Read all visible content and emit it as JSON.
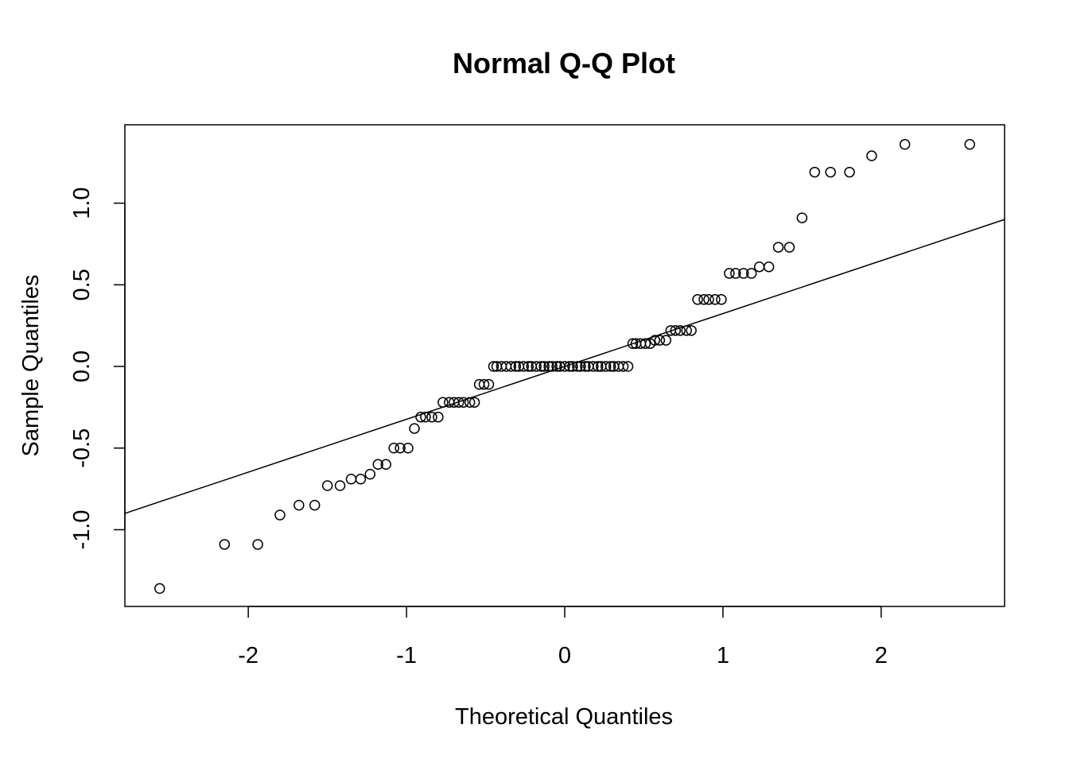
{
  "chart_data": {
    "type": "scatter",
    "title": "Normal Q-Q Plot",
    "xlabel": "Theoretical Quantiles",
    "ylabel": "Sample Quantiles",
    "xlim": [
      -2.78,
      2.78
    ],
    "ylim": [
      -1.47,
      1.48
    ],
    "x_ticks": [
      -2,
      -1,
      0,
      1,
      2
    ],
    "x_tick_labels": [
      "-2",
      "-1",
      "0",
      "1",
      "2"
    ],
    "y_ticks": [
      -1.0,
      -0.5,
      0.0,
      0.5,
      1.0
    ],
    "y_tick_labels": [
      "-1.0",
      "-0.5",
      "0.0",
      "0.5",
      "1.0"
    ],
    "grid": false,
    "legend": "none",
    "marker": "open-circle",
    "colors": {
      "points": "#000000",
      "line": "#000000",
      "frame": "#000000",
      "background": "#ffffff"
    },
    "reference_line": {
      "x": [
        -2.78,
        2.78
      ],
      "y": [
        -0.9,
        0.9
      ]
    },
    "points": [
      [
        -2.56,
        -1.36
      ],
      [
        -2.15,
        -1.09
      ],
      [
        -1.94,
        -1.09
      ],
      [
        -1.8,
        -0.91
      ],
      [
        -1.68,
        -0.85
      ],
      [
        -1.58,
        -0.85
      ],
      [
        -1.5,
        -0.73
      ],
      [
        -1.42,
        -0.73
      ],
      [
        -1.35,
        -0.69
      ],
      [
        -1.29,
        -0.69
      ],
      [
        -1.23,
        -0.66
      ],
      [
        -1.18,
        -0.6
      ],
      [
        -1.13,
        -0.6
      ],
      [
        -1.08,
        -0.5
      ],
      [
        -1.04,
        -0.5
      ],
      [
        -0.99,
        -0.5
      ],
      [
        -0.95,
        -0.38
      ],
      [
        -0.91,
        -0.31
      ],
      [
        -0.88,
        -0.31
      ],
      [
        -0.84,
        -0.31
      ],
      [
        -0.8,
        -0.31
      ],
      [
        -0.77,
        -0.22
      ],
      [
        -0.73,
        -0.22
      ],
      [
        -0.7,
        -0.22
      ],
      [
        -0.67,
        -0.22
      ],
      [
        -0.64,
        -0.22
      ],
      [
        -0.6,
        -0.22
      ],
      [
        -0.57,
        -0.22
      ],
      [
        -0.54,
        -0.11
      ],
      [
        -0.51,
        -0.11
      ],
      [
        -0.48,
        -0.11
      ],
      [
        -0.45,
        0.0
      ],
      [
        -0.43,
        0.0
      ],
      [
        -0.4,
        0.0
      ],
      [
        -0.37,
        0.0
      ],
      [
        -0.34,
        0.0
      ],
      [
        -0.31,
        0.0
      ],
      [
        -0.29,
        0.0
      ],
      [
        -0.26,
        0.0
      ],
      [
        -0.23,
        0.0
      ],
      [
        -0.21,
        0.0
      ],
      [
        -0.18,
        0.0
      ],
      [
        -0.15,
        0.0
      ],
      [
        -0.13,
        0.0
      ],
      [
        -0.1,
        0.0
      ],
      [
        -0.08,
        0.0
      ],
      [
        -0.05,
        0.0
      ],
      [
        -0.03,
        0.0
      ],
      [
        0.0,
        0.0
      ],
      [
        0.03,
        0.0
      ],
      [
        0.05,
        0.0
      ],
      [
        0.08,
        0.0
      ],
      [
        0.1,
        0.0
      ],
      [
        0.13,
        0.0
      ],
      [
        0.15,
        0.0
      ],
      [
        0.18,
        0.0
      ],
      [
        0.21,
        0.0
      ],
      [
        0.23,
        0.0
      ],
      [
        0.26,
        0.0
      ],
      [
        0.29,
        0.0
      ],
      [
        0.31,
        0.0
      ],
      [
        0.34,
        0.0
      ],
      [
        0.37,
        0.0
      ],
      [
        0.4,
        0.0
      ],
      [
        0.43,
        0.14
      ],
      [
        0.45,
        0.14
      ],
      [
        0.48,
        0.14
      ],
      [
        0.51,
        0.14
      ],
      [
        0.54,
        0.14
      ],
      [
        0.57,
        0.16
      ],
      [
        0.6,
        0.16
      ],
      [
        0.64,
        0.16
      ],
      [
        0.67,
        0.22
      ],
      [
        0.7,
        0.22
      ],
      [
        0.73,
        0.22
      ],
      [
        0.77,
        0.22
      ],
      [
        0.8,
        0.22
      ],
      [
        0.84,
        0.41
      ],
      [
        0.88,
        0.41
      ],
      [
        0.91,
        0.41
      ],
      [
        0.95,
        0.41
      ],
      [
        0.99,
        0.41
      ],
      [
        1.04,
        0.57
      ],
      [
        1.08,
        0.57
      ],
      [
        1.13,
        0.57
      ],
      [
        1.18,
        0.57
      ],
      [
        1.23,
        0.61
      ],
      [
        1.29,
        0.61
      ],
      [
        1.35,
        0.73
      ],
      [
        1.42,
        0.73
      ],
      [
        1.5,
        0.91
      ],
      [
        1.58,
        1.19
      ],
      [
        1.68,
        1.19
      ],
      [
        1.8,
        1.19
      ],
      [
        1.94,
        1.29
      ],
      [
        2.15,
        1.36
      ],
      [
        2.56,
        1.36
      ]
    ]
  }
}
